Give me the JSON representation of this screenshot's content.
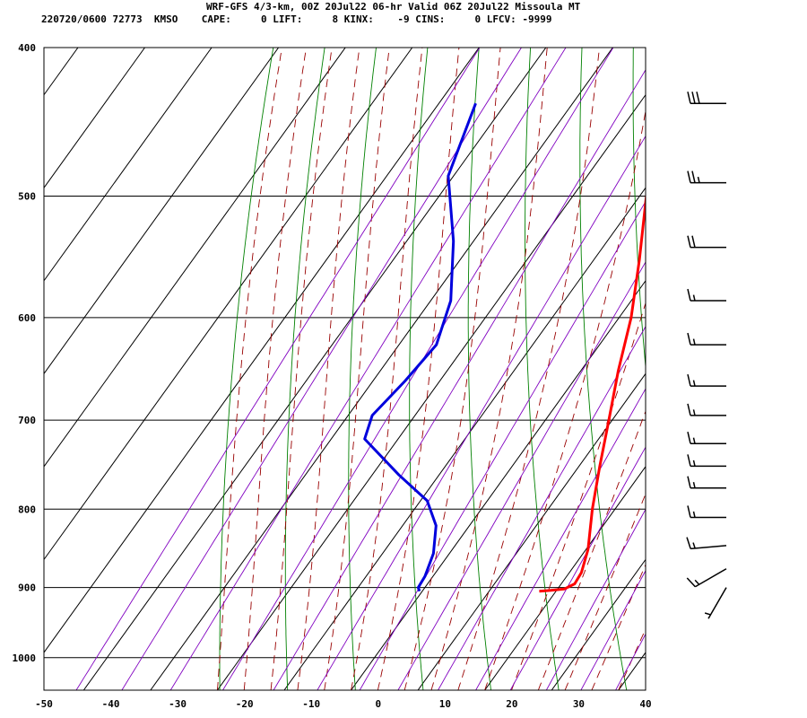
{
  "header": {
    "title": "WRF-GFS 4/3-km, 00Z 20Jul22 06-hr Valid 06Z 20Jul22 Missoula MT",
    "stats": "220720/0600 72773  KMSO    CAPE:     0 LIFT:     8 KINX:    -9 CINS:     0 LFCV: -9999"
  },
  "chart_data": {
    "type": "line",
    "subtype": "skew-t log-p sounding",
    "title": "WRF-GFS 4/3-km, 00Z 20Jul22 06-hr Valid 06Z 20Jul22 Missoula MT",
    "xlabel": "",
    "ylabel": "",
    "x_range": [
      -50,
      40
    ],
    "x_ticks": [
      -50,
      -40,
      -30,
      -20,
      -10,
      0,
      10,
      20,
      30,
      40
    ],
    "y_scale": "log",
    "y_range": [
      400,
      1050
    ],
    "y_ticks": [
      400,
      500,
      600,
      700,
      800,
      900,
      1000
    ],
    "grid": true,
    "colors": {
      "temperature": "#ff0000",
      "dewpoint": "#0000dd",
      "isotherm": "#000000",
      "isobar": "#000000",
      "dry_adiabat": "#008000",
      "moist_adiabat": "#990000",
      "mixing_ratio": "#8000c0",
      "barb": "#000000"
    },
    "series": [
      {
        "key": "temperature",
        "points": [
          {
            "p": 435,
            "t": -16.6
          },
          {
            "p": 500,
            "t": -9.0
          },
          {
            "p": 550,
            "t": -3.2
          },
          {
            "p": 600,
            "t": 1.8
          },
          {
            "p": 650,
            "t": 5.6
          },
          {
            "p": 700,
            "t": 9.5
          },
          {
            "p": 750,
            "t": 13.1
          },
          {
            "p": 800,
            "t": 16.6
          },
          {
            "p": 850,
            "t": 20.3
          },
          {
            "p": 880,
            "t": 21.8
          },
          {
            "p": 895,
            "t": 22.0
          },
          {
            "p": 902,
            "t": 21.0
          },
          {
            "p": 904,
            "t": 19.0
          },
          {
            "p": 905,
            "t": 17.5
          }
        ]
      },
      {
        "key": "dewpoint",
        "points": [
          {
            "p": 435,
            "t": -44.5
          },
          {
            "p": 485,
            "t": -40.8
          },
          {
            "p": 535,
            "t": -33.0
          },
          {
            "p": 585,
            "t": -27.0
          },
          {
            "p": 625,
            "t": -24.4
          },
          {
            "p": 660,
            "t": -25.2
          },
          {
            "p": 695,
            "t": -26.4
          },
          {
            "p": 720,
            "t": -25.0
          },
          {
            "p": 760,
            "t": -16.0
          },
          {
            "p": 790,
            "t": -9.0
          },
          {
            "p": 820,
            "t": -5.0
          },
          {
            "p": 855,
            "t": -2.4
          },
          {
            "p": 885,
            "t": -1.2
          },
          {
            "p": 900,
            "t": -1.0
          },
          {
            "p": 905,
            "t": -0.4
          }
        ]
      }
    ],
    "wind_barbs": [
      {
        "p": 435,
        "dir": 270,
        "spd": 30
      },
      {
        "p": 490,
        "dir": 270,
        "spd": 25
      },
      {
        "p": 540,
        "dir": 270,
        "spd": 20
      },
      {
        "p": 585,
        "dir": 270,
        "spd": 15
      },
      {
        "p": 625,
        "dir": 270,
        "spd": 15
      },
      {
        "p": 665,
        "dir": 270,
        "spd": 15
      },
      {
        "p": 695,
        "dir": 270,
        "spd": 15
      },
      {
        "p": 725,
        "dir": 270,
        "spd": 15
      },
      {
        "p": 750,
        "dir": 270,
        "spd": 15
      },
      {
        "p": 775,
        "dir": 270,
        "spd": 15
      },
      {
        "p": 810,
        "dir": 270,
        "spd": 15
      },
      {
        "p": 845,
        "dir": 265,
        "spd": 15
      },
      {
        "p": 875,
        "dir": 240,
        "spd": 15
      },
      {
        "p": 900,
        "dir": 210,
        "spd": 5
      }
    ]
  }
}
